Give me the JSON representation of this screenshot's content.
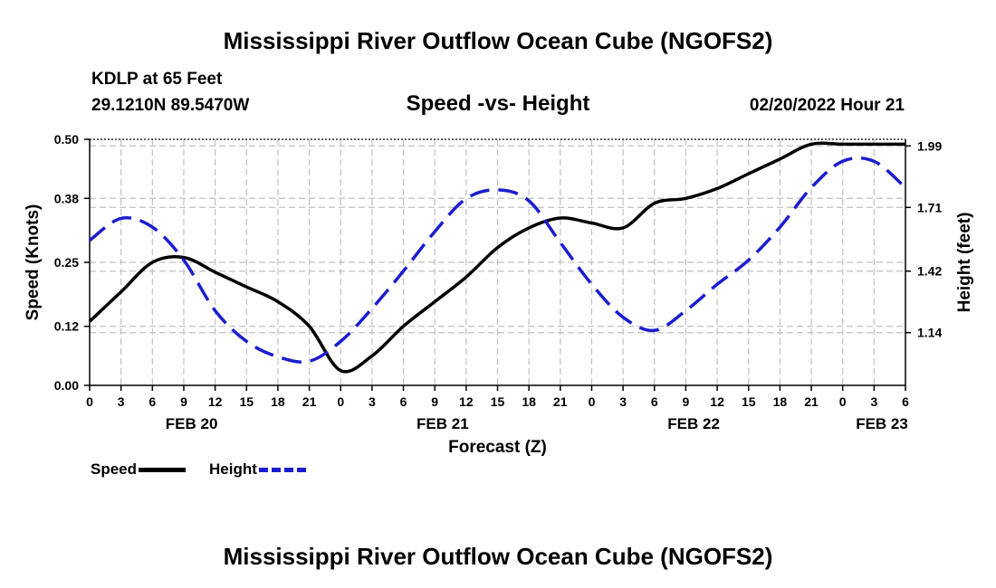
{
  "page": {
    "title_top": "Mississippi River Outflow Ocean Cube (NGOFS2)",
    "title_bottom": "Mississippi River Outflow Ocean Cube (NGOFS2)",
    "station": "KDLP at 65 Feet",
    "coords": "29.1210N  89.5470W",
    "subtitle": "Speed -vs- Height",
    "datetime": "02/20/2022 Hour 21"
  },
  "legend": {
    "speed_label": "Speed",
    "height_label": "Height"
  },
  "colors": {
    "speed": "#000000",
    "height": "#1c1ccf",
    "grid": "#c0c0c0"
  },
  "chart_data": {
    "type": "line",
    "title": "Speed -vs- Height",
    "xlabel": "Forecast (Z)",
    "ylabel": "Speed (Knots)",
    "y2label": "Height (feet)",
    "xlim": [
      0,
      78
    ],
    "ylim": [
      0,
      0.5
    ],
    "y2lim": [
      0.9,
      2.02
    ],
    "grid": true,
    "x_ticks": [
      0,
      3,
      6,
      9,
      12,
      15,
      18,
      21,
      24,
      27,
      30,
      33,
      36,
      39,
      42,
      45,
      48,
      51,
      54,
      57,
      60,
      63,
      66,
      69,
      72,
      75,
      78
    ],
    "x_tick_labels": [
      "0",
      "3",
      "6",
      "9",
      "12",
      "15",
      "18",
      "21",
      "0",
      "3",
      "6",
      "9",
      "12",
      "15",
      "18",
      "21",
      "0",
      "3",
      "6",
      "9",
      "12",
      "15",
      "18",
      "21",
      "0",
      "3",
      "6"
    ],
    "date_labels": [
      {
        "x": 9.75,
        "label": "FEB 20"
      },
      {
        "x": 33.75,
        "label": "FEB 21"
      },
      {
        "x": 57.75,
        "label": "FEB 22"
      },
      {
        "x": 75.75,
        "label": "FEB 23"
      }
    ],
    "y_ticks": [
      0,
      0.12,
      0.25,
      0.38,
      0.5
    ],
    "y_tick_labels": [
      "0.00",
      "0.12",
      "0.25",
      "0.38",
      "0.50"
    ],
    "y2_ticks": [
      1.14,
      1.42,
      1.71,
      1.99
    ],
    "y2_tick_labels": [
      "1.14",
      "1.42",
      "1.71",
      "1.99"
    ],
    "series": [
      {
        "name": "Speed",
        "axis": "left",
        "style": "solid",
        "x": [
          0,
          3,
          6,
          9,
          12,
          15,
          18,
          21,
          24,
          27,
          30,
          33,
          36,
          39,
          42,
          45,
          48,
          51,
          54,
          57,
          60,
          63,
          66,
          69,
          72,
          75,
          78
        ],
        "values": [
          0.13,
          0.19,
          0.25,
          0.26,
          0.23,
          0.2,
          0.17,
          0.12,
          0.03,
          0.06,
          0.12,
          0.17,
          0.22,
          0.28,
          0.32,
          0.34,
          0.33,
          0.32,
          0.37,
          0.38,
          0.4,
          0.43,
          0.46,
          0.49,
          0.49,
          0.49,
          0.49
        ]
      },
      {
        "name": "Height",
        "axis": "right",
        "style": "dashed",
        "x": [
          0,
          3,
          6,
          9,
          12,
          15,
          18,
          21,
          24,
          27,
          30,
          33,
          36,
          39,
          42,
          45,
          48,
          51,
          54,
          57,
          60,
          63,
          66,
          69,
          72,
          75,
          78
        ],
        "values": [
          1.56,
          1.66,
          1.62,
          1.47,
          1.24,
          1.1,
          1.03,
          1.01,
          1.1,
          1.25,
          1.42,
          1.6,
          1.75,
          1.79,
          1.74,
          1.55,
          1.36,
          1.21,
          1.15,
          1.24,
          1.36,
          1.47,
          1.62,
          1.8,
          1.92,
          1.92,
          1.8
        ]
      }
    ]
  }
}
